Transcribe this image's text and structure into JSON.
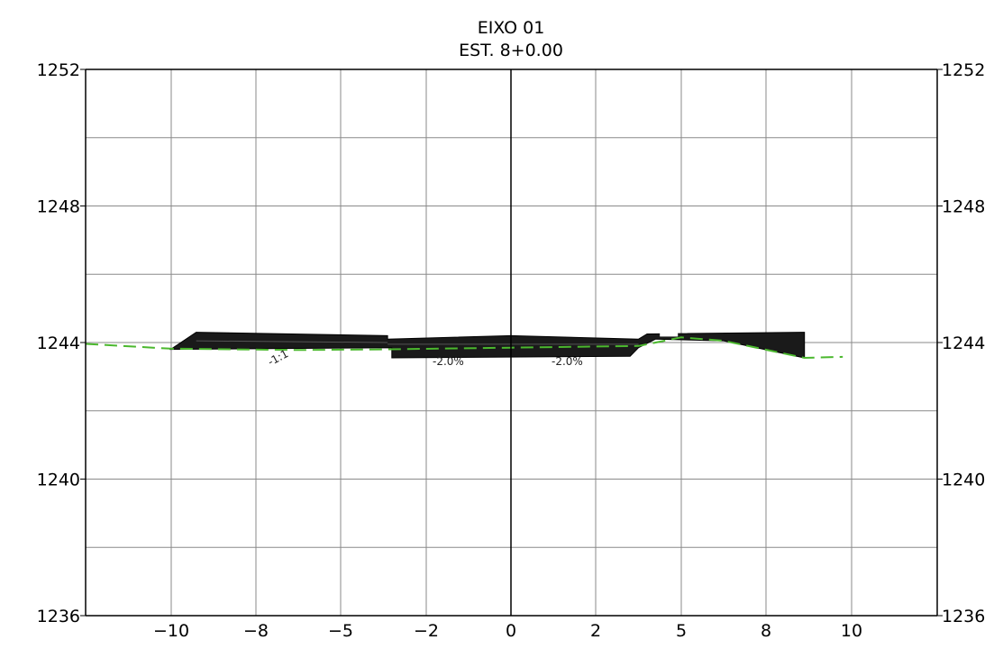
{
  "chart_data": {
    "type": "cross-section",
    "title": "EIXO  01",
    "subtitle": "EST.  8+0.00",
    "x_tick_labels": [
      "−10",
      "−8",
      "−5",
      "−2",
      "0",
      "2",
      "5",
      "8",
      "10"
    ],
    "y_tick_labels_left": [
      "1252",
      "1248",
      "1244",
      "1240",
      "1236"
    ],
    "y_tick_labels_right": [
      "1252",
      "1248",
      "1244",
      "1240",
      "1236"
    ],
    "y_ticks": [
      1252,
      1248,
      1244,
      1240,
      1236
    ],
    "ylim": [
      1236,
      1252
    ],
    "xlim": [
      -10,
      10
    ],
    "grid": true,
    "annotations": [
      "-1:1",
      "-2.0%",
      "-2.0%"
    ],
    "terrain_line": {
      "color": "#4bb82e",
      "style": "dashed",
      "points": [
        [
          -10,
          1243.96
        ],
        [
          -8,
          1243.82
        ],
        [
          -5,
          1243.78
        ],
        [
          -3,
          1243.8
        ],
        [
          0,
          1243.85
        ],
        [
          3,
          1243.9
        ],
        [
          4,
          1244.15
        ],
        [
          5,
          1244.05
        ],
        [
          6.9,
          1243.55
        ],
        [
          7.8,
          1243.58
        ]
      ]
    },
    "road_section": {
      "color": "#1a1a1a",
      "polygon": [
        [
          -8,
          1243.8
        ],
        [
          -7.4,
          1244.3
        ],
        [
          -2.9,
          1244.2
        ],
        [
          -2.9,
          1244.1
        ],
        [
          0,
          1244.2
        ],
        [
          3,
          1244.1
        ],
        [
          3.2,
          1244.25
        ],
        [
          6.9,
          1244.3
        ],
        [
          6.9,
          1243.55
        ],
        [
          5,
          1244.05
        ],
        [
          3.4,
          1244.1
        ],
        [
          3,
          1243.85
        ],
        [
          2.8,
          1243.6
        ],
        [
          -2.8,
          1243.55
        ],
        [
          -2.8,
          1243.85
        ],
        [
          -8,
          1243.8
        ]
      ]
    }
  }
}
